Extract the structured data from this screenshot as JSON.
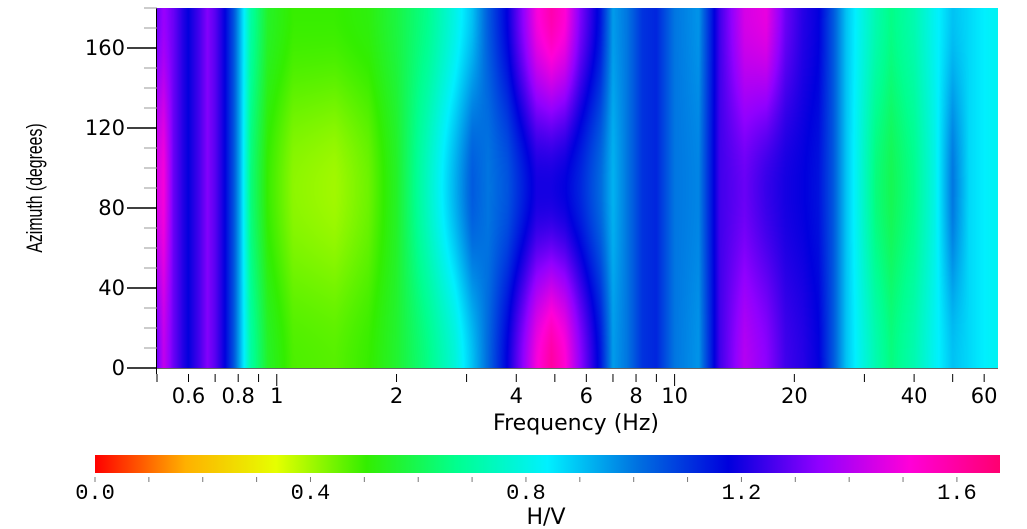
{
  "chart_data": {
    "type": "heatmap",
    "xlabel": "Frequency (Hz)",
    "ylabel": "Azimuth (degrees)",
    "x_scale": "log",
    "xlim": [
      0.5,
      65
    ],
    "ylim": [
      0,
      180
    ],
    "x_ticks": [
      {
        "value": 0.6,
        "label": "0.6"
      },
      {
        "value": 0.8,
        "label": "0.8"
      },
      {
        "value": 1,
        "label": "1"
      },
      {
        "value": 2,
        "label": "2"
      },
      {
        "value": 4,
        "label": "4"
      },
      {
        "value": 6,
        "label": "6"
      },
      {
        "value": 8,
        "label": "8"
      },
      {
        "value": 10,
        "label": "10"
      },
      {
        "value": 20,
        "label": "20"
      },
      {
        "value": 40,
        "label": "40"
      },
      {
        "value": 60,
        "label": "60"
      }
    ],
    "y_ticks": [
      {
        "value": 0,
        "label": "0"
      },
      {
        "value": 40,
        "label": "40"
      },
      {
        "value": 80,
        "label": "80"
      },
      {
        "value": 120,
        "label": "120"
      },
      {
        "value": 160,
        "label": "160"
      }
    ],
    "value_profile_by_frequency": {
      "frequency_hz": [
        0.5,
        0.52,
        0.55,
        0.58,
        0.6,
        0.64,
        0.67,
        0.7,
        0.74,
        0.78,
        0.81,
        0.86,
        0.95,
        1.1,
        1.4,
        1.7,
        2.0,
        2.4,
        2.8,
        3.1,
        3.4,
        3.8,
        4.2,
        4.5,
        4.9,
        5.3,
        5.8,
        6.5,
        7.0,
        7.6,
        8.3,
        9.0,
        10.0,
        11.5,
        13.0,
        15.0,
        17.0,
        19.0,
        21.0,
        23.0,
        25.0,
        27.0,
        29.0,
        32.0,
        35.0,
        40.0,
        45.0,
        50.0,
        55.0,
        60.0,
        65.0
      ],
      "hv_azimuth_0": [
        1.3,
        1.42,
        1.3,
        1.22,
        1.18,
        1.26,
        1.33,
        1.28,
        1.18,
        1.05,
        0.92,
        0.7,
        0.55,
        0.48,
        0.47,
        0.5,
        0.56,
        0.66,
        0.78,
        0.9,
        1.02,
        1.18,
        1.36,
        1.5,
        1.6,
        1.52,
        1.34,
        1.15,
        0.95,
        1.0,
        1.1,
        1.12,
        1.0,
        0.96,
        1.25,
        1.4,
        1.34,
        1.25,
        1.22,
        1.18,
        1.05,
        0.9,
        0.82,
        0.72,
        0.65,
        0.72,
        0.82,
        0.9,
        0.87,
        0.84,
        0.82
      ],
      "hv_azimuth_90": [
        1.45,
        1.5,
        1.3,
        1.22,
        1.18,
        1.26,
        1.33,
        1.28,
        1.18,
        1.05,
        0.92,
        0.65,
        0.5,
        0.42,
        0.4,
        0.45,
        0.55,
        0.75,
        0.92,
        1.04,
        1.0,
        1.05,
        1.14,
        1.2,
        1.2,
        1.18,
        1.12,
        1.02,
        0.92,
        1.0,
        1.1,
        1.12,
        1.0,
        0.98,
        1.25,
        1.3,
        1.24,
        1.2,
        1.18,
        1.15,
        1.05,
        0.9,
        0.8,
        0.65,
        0.6,
        0.67,
        0.8,
        1.0,
        0.87,
        0.84,
        0.82
      ],
      "hv_azimuth_180": [
        1.3,
        1.36,
        1.3,
        1.22,
        1.18,
        1.26,
        1.33,
        1.28,
        1.18,
        1.05,
        0.92,
        0.7,
        0.55,
        0.5,
        0.5,
        0.52,
        0.58,
        0.67,
        0.8,
        0.9,
        1.04,
        1.18,
        1.36,
        1.5,
        1.58,
        1.52,
        1.32,
        1.15,
        0.95,
        1.0,
        1.1,
        1.12,
        1.0,
        0.96,
        1.25,
        1.45,
        1.48,
        1.3,
        1.22,
        1.18,
        1.05,
        0.9,
        0.82,
        0.72,
        0.66,
        0.72,
        0.82,
        0.9,
        0.87,
        0.84,
        0.82
      ]
    },
    "colorbar": {
      "label": "H/V",
      "range": [
        0.0,
        1.68
      ],
      "ticks": [
        {
          "value": 0.0,
          "label": "0.0"
        },
        {
          "value": 0.4,
          "label": "0.4"
        },
        {
          "value": 0.8,
          "label": "0.8"
        },
        {
          "value": 1.2,
          "label": "1.2"
        },
        {
          "value": 1.6,
          "label": "1.6"
        }
      ],
      "colors": [
        "#ff0000",
        "#ffb000",
        "#e6ff00",
        "#33ee00",
        "#00ff90",
        "#00f0ff",
        "#0070e0",
        "#0000dd",
        "#9000ff",
        "#ff00d8",
        "#ff0070"
      ]
    },
    "grid": false,
    "legend": "colorbar-bottom"
  }
}
